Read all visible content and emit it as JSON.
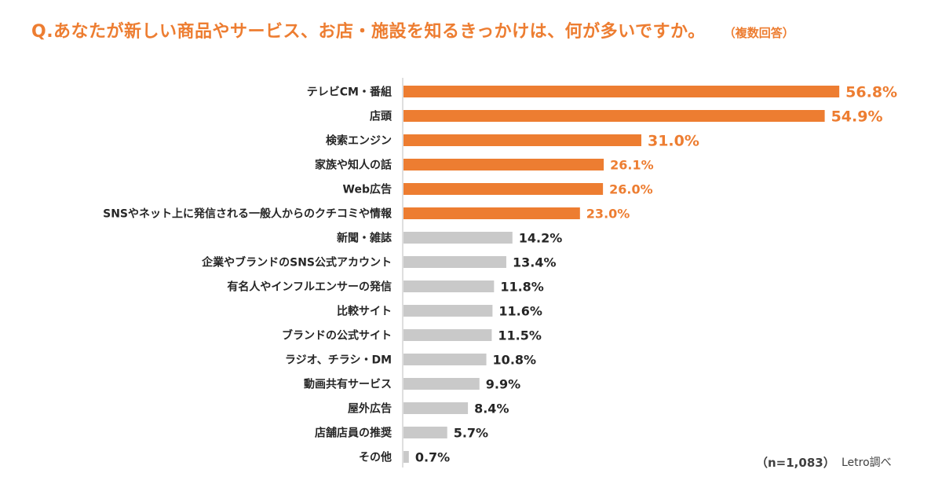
{
  "chart_data": {
    "type": "bar",
    "orientation": "horizontal",
    "title": "Q.あなたが新しい商品やサービス、お店・施設を知るきっかけは、何が多いですか。",
    "subtitle": "（複数回答）",
    "categories": [
      "テレビCM・番組",
      "店頭",
      "検索エンジン",
      "家族や知人の話",
      "Web広告",
      "SNSやネット上に発信される一般人からのクチコミや情報",
      "新聞・雑誌",
      "企業やブランドのSNS公式アカウント",
      "有名人やインフルエンサーの発信",
      "比較サイト",
      "ブランドの公式サイト",
      "ラジオ、チラシ・DM",
      "動画共有サービス",
      "屋外広告",
      "店舗店員の推奨",
      "その他"
    ],
    "values": [
      56.8,
      54.9,
      31.0,
      26.1,
      26.0,
      23.0,
      14.2,
      13.4,
      11.8,
      11.6,
      11.5,
      10.8,
      9.9,
      8.4,
      5.7,
      0.7
    ],
    "labels": [
      "56.8%",
      "54.9%",
      "31.0%",
      "26.1%",
      "26.0%",
      "23.0%",
      "14.2%",
      "13.4%",
      "11.8%",
      "11.6%",
      "11.5%",
      "10.8%",
      "9.9%",
      "8.4%",
      "5.7%",
      "0.7%"
    ],
    "highlight_count": 6,
    "colors": {
      "highlight": "#ED7D31",
      "default": "#C9C9C9",
      "label_default": "#262626",
      "axis": "#BFBFBF",
      "category_text": "#262626"
    },
    "xlim": [
      0,
      60
    ],
    "grid": false,
    "legend": "none",
    "note": "（n=1,083）",
    "source": "Letro調べ"
  }
}
